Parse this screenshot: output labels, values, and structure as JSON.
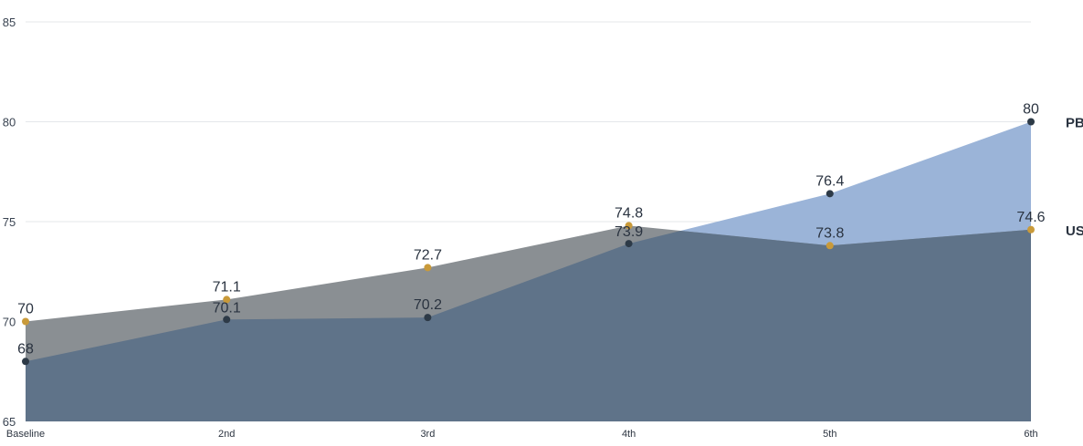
{
  "chart_data": {
    "type": "area",
    "categories": [
      "Baseline",
      "2nd",
      "3rd",
      "4th",
      "5th",
      "6th"
    ],
    "ylim": [
      65,
      85
    ],
    "yticks": [
      65,
      70,
      75,
      80,
      85
    ],
    "grid": true,
    "series": [
      {
        "name": "PB",
        "values": [
          68,
          70.1,
          70.2,
          73.9,
          76.4,
          80
        ],
        "fill": "#9bb4d8",
        "marker": "#2d3a47"
      },
      {
        "name": "US",
        "values": [
          70,
          71.1,
          72.7,
          74.8,
          73.8,
          74.6
        ],
        "fill": "#8a8f93",
        "marker": "#c99a3a"
      }
    ],
    "overlap_fill": "#5f7389"
  }
}
